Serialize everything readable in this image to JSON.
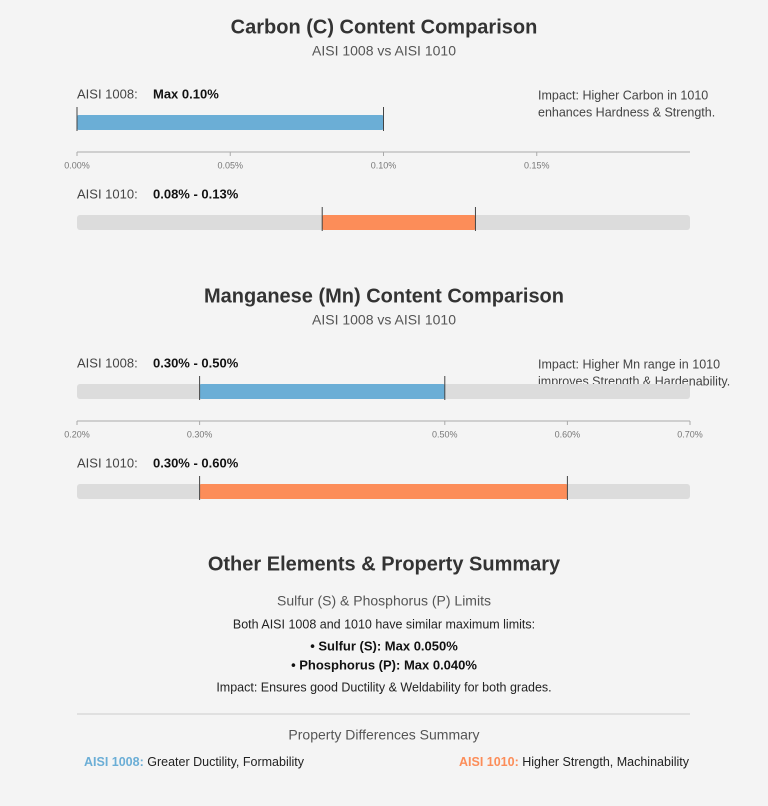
{
  "chart_data": [
    {
      "type": "range",
      "title": "Carbon (C) Content Comparison",
      "subtitle": "AISI 1008 vs AISI 1010",
      "annotation": [
        "Impact: Higher Carbon in 1010",
        "enhances Hardness & Strength."
      ],
      "xlim": [
        0,
        0.2
      ],
      "xticks": [
        {
          "value": 0,
          "label": "0.00%"
        },
        {
          "value": 0.05,
          "label": "0.05%"
        },
        {
          "value": 0.1,
          "label": "0.10%"
        },
        {
          "value": 0.15,
          "label": "0.15%"
        }
      ],
      "series": [
        {
          "name": "AISI 1008:",
          "color": "#6baed6",
          "values": [
            0,
            0.1
          ],
          "range_label": "Max 0.10%",
          "track": false
        },
        {
          "name": "AISI 1010:",
          "color": "#fc8d59",
          "values": [
            0.08,
            0.13
          ],
          "range_label": "0.08% - 0.13%",
          "track": true
        }
      ]
    },
    {
      "type": "range",
      "title": "Manganese (Mn) Content Comparison",
      "subtitle": "AISI 1008 vs AISI 1010",
      "annotation": [
        "Impact: Higher Mn range in 1010",
        "improves Strength & Hardenability."
      ],
      "xlim": [
        0.2,
        0.7
      ],
      "xticks": [
        {
          "value": 0.2,
          "label": "0.20%"
        },
        {
          "value": 0.3,
          "label": "0.30%"
        },
        {
          "value": 0.5,
          "label": "0.50%"
        },
        {
          "value": 0.6,
          "label": "0.60%"
        },
        {
          "value": 0.7,
          "label": "0.70%"
        }
      ],
      "series": [
        {
          "name": "AISI 1008:",
          "color": "#6baed6",
          "values": [
            0.3,
            0.5
          ],
          "range_label": "0.30% - 0.50%",
          "track": true
        },
        {
          "name": "AISI 1010:",
          "color": "#fc8d59",
          "values": [
            0.3,
            0.6
          ],
          "range_label": "0.30% - 0.60%",
          "track": true
        }
      ]
    }
  ],
  "summary": {
    "title": "Other Elements & Property Summary",
    "subtitle": "Sulfur (S) & Phosphorus (P) Limits",
    "intro": "Both AISI 1008 and 1010 have similar maximum limits:",
    "items": [
      "• Sulfur (S): Max 0.050%",
      "• Phosphorus (P): Max 0.040%"
    ],
    "impact": "Impact: Ensures good Ductility & Weldability for both grades.",
    "differences_title": "Property Differences Summary",
    "differences": [
      {
        "grade": "AISI 1008:",
        "text": "Greater Ductility, Formability",
        "color": "#6baed6"
      },
      {
        "grade": "AISI 1010:",
        "text": "Higher Strength, Machinability",
        "color": "#fc8d59"
      }
    ]
  }
}
